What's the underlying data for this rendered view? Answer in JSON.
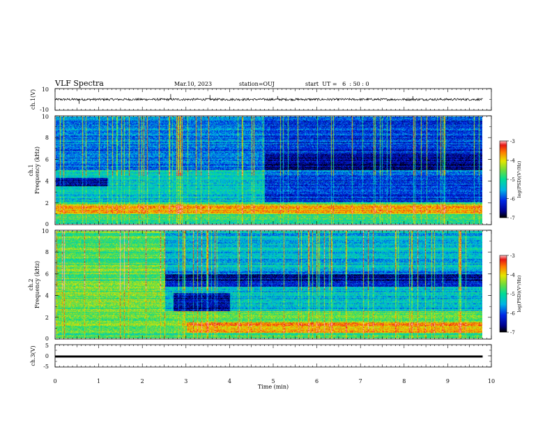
{
  "header": {
    "title": "VLF Spectra",
    "date": "Mar.10, 2023",
    "station": "station=OUJ",
    "start_ut": "start  UT =   6  : 50 : 0"
  },
  "chart_data": [
    {
      "type": "line",
      "panel": "ch1-waveform",
      "ylabel": "ch.1(V)",
      "ylim": [
        -10,
        10
      ],
      "y_ticks": [
        "10",
        "-10"
      ],
      "x_range_min": [
        0,
        9.8
      ],
      "trace": {
        "baseline": 0,
        "typical_amplitude": 1,
        "spikes": [
          [
            0.55,
            -4
          ],
          [
            2.65,
            5
          ],
          [
            3.55,
            4
          ],
          [
            5.1,
            3
          ],
          [
            8.2,
            3
          ]
        ]
      }
    },
    {
      "type": "heatmap",
      "panel": "ch1-spectrogram",
      "ylabel_lines": [
        "ch.1",
        "Frequency (kHz)"
      ],
      "ylim": [
        0,
        10
      ],
      "y_ticks": [
        "10",
        "8",
        "6",
        "4",
        "2",
        "0"
      ],
      "colorbar": {
        "label": "log(PSD)(V²/Hz)",
        "ticks": [
          "-3",
          "-4",
          "-5",
          "-6",
          "-7"
        ],
        "range": [
          -7,
          -3
        ]
      }
    },
    {
      "type": "heatmap",
      "panel": "ch2-spectrogram",
      "ylabel_lines": [
        "ch.2",
        "Frequency (kHz)"
      ],
      "ylim": [
        0,
        10
      ],
      "y_ticks": [
        "10",
        "8",
        "6",
        "4",
        "2",
        "0"
      ],
      "colorbar": {
        "label": "log(PSD)(V²/Hz)",
        "ticks": [
          "-3",
          "-4",
          "-5",
          "-6",
          "-7"
        ],
        "range": [
          -7,
          -3
        ]
      }
    },
    {
      "type": "line",
      "panel": "ch3-waveform",
      "ylabel": "ch.3(V)",
      "ylim": [
        -5,
        5
      ],
      "y_ticks": [
        "5",
        "0",
        "-5"
      ],
      "trace": {
        "value": -0.3,
        "thickness_v": 0.3
      },
      "xlabel": "Time (min)",
      "xlim": [
        0,
        10
      ],
      "x_ticks": [
        "0",
        "1",
        "2",
        "3",
        "4",
        "5",
        "6",
        "7",
        "8",
        "9",
        "10"
      ]
    }
  ]
}
